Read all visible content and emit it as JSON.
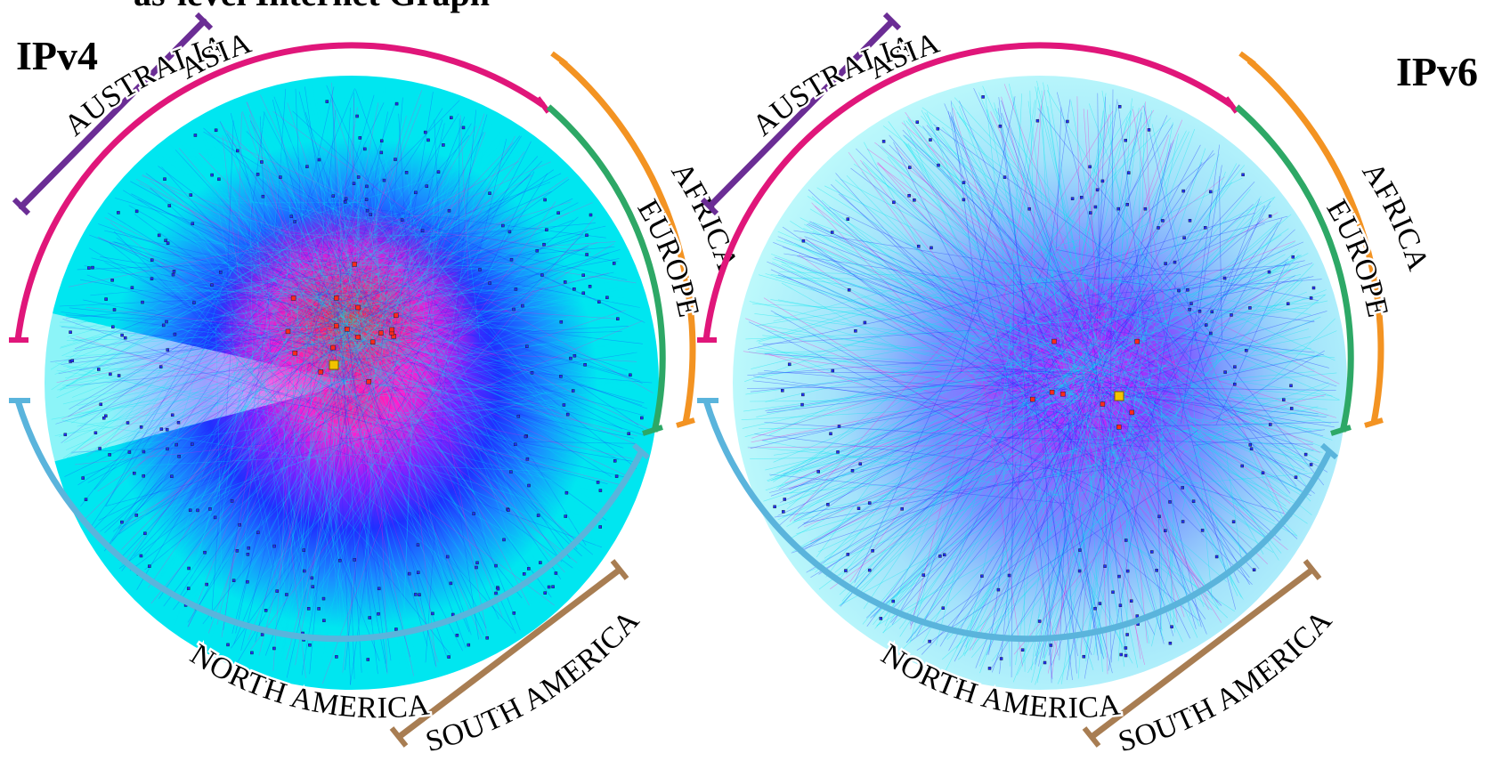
{
  "figure": {
    "clipped_heading": "as-level Internet Graph"
  },
  "colors": {
    "australia": "#6b2d95",
    "asia": "#e0167a",
    "europe": "#2da866",
    "africa": "#f39322",
    "north_america": "#5ab4dc",
    "south_america": "#a87d52",
    "edge_outer": "#00e6f0",
    "edge_mid": "#2030ff",
    "edge_core": "#ff1fd0",
    "node_core": "#ff2a1a",
    "node_top": "#f2c400"
  },
  "panels": [
    {
      "id": "ipv4",
      "title": "IPv4",
      "regions": [
        {
          "key": "australia",
          "label": "AUSTRALIA"
        },
        {
          "key": "asia",
          "label": "ASIA"
        },
        {
          "key": "africa",
          "label": "AFRICA"
        },
        {
          "key": "europe",
          "label": "EUROPE"
        },
        {
          "key": "north_america",
          "label": "NORTH AMERICA"
        },
        {
          "key": "south_america",
          "label": "SOUTH AMERICA"
        }
      ]
    },
    {
      "id": "ipv6",
      "title": "IPv6",
      "regions": [
        {
          "key": "australia",
          "label": "AUSTRALIA"
        },
        {
          "key": "asia",
          "label": "ASIA"
        },
        {
          "key": "africa",
          "label": "AFRICA"
        },
        {
          "key": "europe",
          "label": "EUROPE"
        },
        {
          "key": "north_america",
          "label": "NORTH AMERICA"
        },
        {
          "key": "south_america",
          "label": "SOUTH AMERICA"
        }
      ]
    }
  ]
}
